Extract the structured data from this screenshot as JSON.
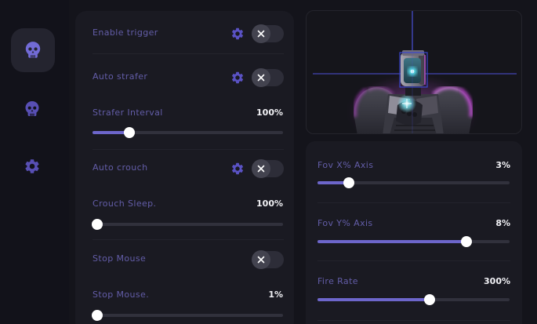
{
  "colors": {
    "background": "#14141b",
    "card": "#1a1a22",
    "accent_purple": "#6d66cb",
    "icon_purple": "#5a52c4",
    "label_purple": "#635da8",
    "value_white": "#f2f2f6",
    "crosshair_blue": "#4a4fd6",
    "rim_magenta": "#d650ea"
  },
  "sidebar": {
    "items": [
      {
        "id": "aim-tab",
        "icon": "skull-icon",
        "active": true
      },
      {
        "id": "second-tab",
        "icon": "skull-icon",
        "active": false
      },
      {
        "id": "settings-tab",
        "icon": "gear-icon",
        "active": false
      }
    ]
  },
  "main": {
    "toggles": [
      {
        "label": "Enable trigger",
        "state": "off",
        "has_gear": true
      },
      {
        "label": "Auto strafer",
        "state": "off",
        "has_gear": true
      },
      {
        "label": "Auto crouch",
        "state": "off",
        "has_gear": true
      },
      {
        "label": "Stop Mouse",
        "state": "off",
        "has_gear": false
      }
    ],
    "sliders": [
      {
        "label": "Strafer Interval",
        "value": "100%",
        "fill_pct": 19
      },
      {
        "label": "Crouch Sleep.",
        "value": "100%",
        "fill_pct": 2
      },
      {
        "label": "Stop Mouse.",
        "value": "1%",
        "fill_pct": 2
      }
    ]
  },
  "aim": {
    "viewport": {
      "content": "robot-aim-preview",
      "crosshair": true,
      "head_target_box": true
    },
    "sliders": [
      {
        "label": "Fov X% Axis",
        "value": "3%",
        "fill_pct": 16
      },
      {
        "label": "Fov Y% Axis",
        "value": "8%",
        "fill_pct": 77
      },
      {
        "label": "Fire Rate",
        "value": "300%",
        "fill_pct": 58
      }
    ]
  }
}
